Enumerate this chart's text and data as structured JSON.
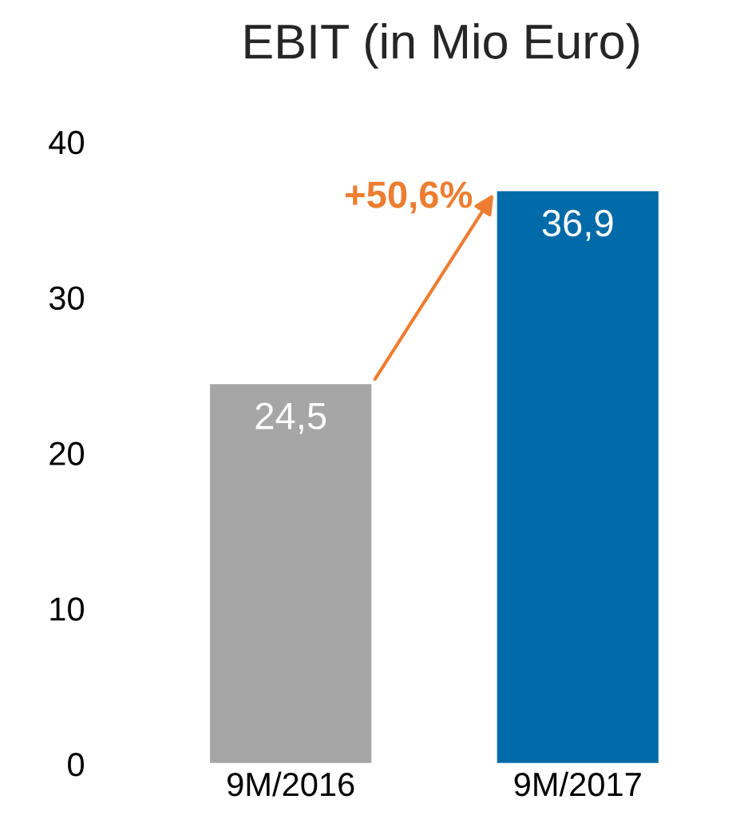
{
  "chart_data": {
    "type": "bar",
    "title": "EBIT (in Mio Euro)",
    "categories": [
      "9M/2016",
      "9M/2017"
    ],
    "values": [
      24.5,
      36.9
    ],
    "colors": [
      "#a6a6a6",
      "#006ba8"
    ],
    "value_labels": [
      "24,5",
      "36,9"
    ],
    "ylim": [
      0,
      40
    ],
    "yticks": [
      0,
      10,
      20,
      30,
      40
    ],
    "grid": false,
    "legend": false,
    "annotations": [
      {
        "text": "+50,6%",
        "x": "9M/2017",
        "y": 36.9
      }
    ]
  }
}
